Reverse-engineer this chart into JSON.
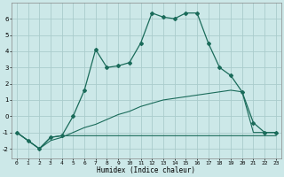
{
  "xlabel": "Humidex (Indice chaleur)",
  "background_color": "#cce8e8",
  "grid_color": "#aacccc",
  "line_color": "#1a6b5a",
  "x_ticks": [
    0,
    1,
    2,
    3,
    4,
    5,
    6,
    7,
    8,
    9,
    10,
    11,
    12,
    13,
    14,
    15,
    16,
    17,
    18,
    19,
    20,
    21,
    22,
    23
  ],
  "y_ticks": [
    -2,
    -1,
    0,
    1,
    2,
    3,
    4,
    5,
    6
  ],
  "ylim": [
    -2.6,
    7.0
  ],
  "xlim": [
    -0.5,
    23.5
  ],
  "series1_x": [
    0,
    1,
    2,
    3,
    4,
    5,
    6,
    7,
    8,
    9,
    10,
    11,
    12,
    13,
    14,
    15,
    16,
    17,
    18,
    19,
    20,
    21,
    22,
    23
  ],
  "series1_y": [
    -1.0,
    -1.5,
    -2.0,
    -1.3,
    -1.2,
    0.0,
    1.6,
    4.1,
    3.0,
    3.1,
    3.3,
    4.5,
    6.35,
    6.1,
    6.0,
    6.35,
    6.35,
    4.5,
    3.0,
    2.5,
    1.5,
    -0.4,
    -1.0,
    -1.0
  ],
  "series2_x": [
    0,
    1,
    2,
    3,
    4,
    5,
    6,
    7,
    8,
    9,
    10,
    11,
    12,
    13,
    14,
    15,
    16,
    17,
    18,
    19,
    20,
    21,
    22,
    23
  ],
  "series2_y": [
    -1.0,
    -1.5,
    -2.0,
    -1.3,
    -1.2,
    -1.2,
    -1.2,
    -1.2,
    -1.2,
    -1.2,
    -1.2,
    -1.2,
    -1.2,
    -1.2,
    -1.2,
    -1.2,
    -1.2,
    -1.2,
    -1.2,
    -1.2,
    -1.2,
    -1.2,
    -1.2,
    -1.2
  ],
  "series3_x": [
    0,
    1,
    2,
    3,
    4,
    5,
    6,
    7,
    8,
    9,
    10,
    11,
    12,
    13,
    14,
    15,
    16,
    17,
    18,
    19,
    20,
    21,
    22,
    23
  ],
  "series3_y": [
    -1.0,
    -1.5,
    -2.0,
    -1.5,
    -1.3,
    -1.0,
    -0.7,
    -0.5,
    -0.2,
    0.1,
    0.3,
    0.6,
    0.8,
    1.0,
    1.1,
    1.2,
    1.3,
    1.4,
    1.5,
    1.6,
    1.5,
    -1.0,
    -1.0,
    -1.0
  ]
}
